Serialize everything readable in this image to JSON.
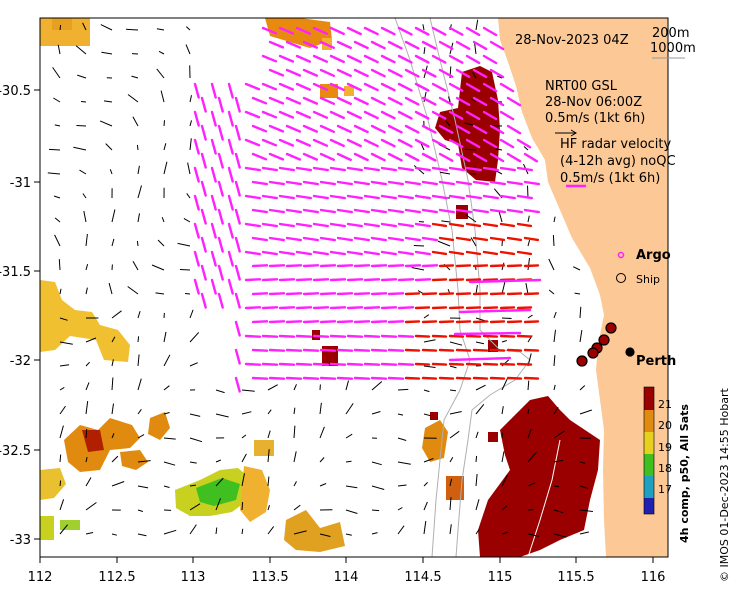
{
  "header": {
    "date": "28-Nov-2023 04Z",
    "depth_200": "200m",
    "depth_1000": "1000m"
  },
  "legend": {
    "nrt_title": "NRT00 GSL",
    "nrt_time": "28-Nov 06:00Z",
    "nrt_scale": "0.5m/s (1kt 6h)",
    "hf_title": "HF radar velocity",
    "hf_subtitle": "(4-12h avg) noQC",
    "hf_scale": "0.5m/s (1kt 6h)",
    "argo_label": "Argo",
    "ship_label": "Ship"
  },
  "place": {
    "perth": "Perth"
  },
  "colorbar": {
    "title": "4h comp, p50, All Sats",
    "ticks": [
      "21",
      "20",
      "19",
      "18",
      "17"
    ]
  },
  "axes": {
    "x_ticks": [
      "112",
      "112.5",
      "113",
      "113.5",
      "114",
      "114.5",
      "115",
      "115.5",
      "116"
    ],
    "y_ticks": [
      "-30.5",
      "-31",
      "-31.5",
      "-32",
      "-32.5",
      "-33"
    ]
  },
  "credit": "© IMOS 01-Dec-2023 14:55 Hobart",
  "colors": {
    "land": "#fbc896",
    "sst_dark": "#9a0000",
    "sst_orange": "#e08a10",
    "sst_yellow": "#f0b030",
    "hf_magenta": "#ff22ff",
    "hf_red": "#ee1100"
  }
}
